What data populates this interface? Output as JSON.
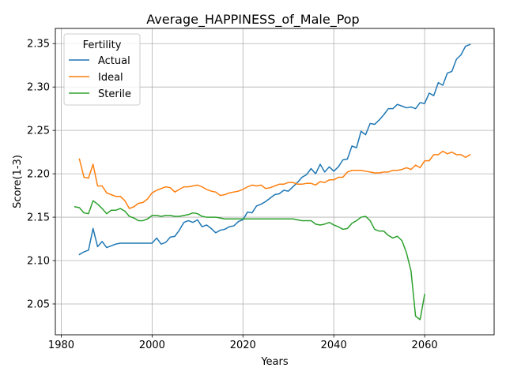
{
  "chart_data": {
    "type": "line",
    "title": "Average_HAPPINESS_of_Male_Pop",
    "xlabel": "Years",
    "ylabel": "Score(1-3)",
    "xlim": [
      1978.7,
      2075.3
    ],
    "ylim": [
      2.0145,
      2.3675
    ],
    "xticks": [
      1980,
      2000,
      2020,
      2040,
      2060
    ],
    "yticks": [
      2.05,
      2.1,
      2.15,
      2.2,
      2.25,
      2.3,
      2.35
    ],
    "ytick_labels": [
      "2.05",
      "2.10",
      "2.15",
      "2.20",
      "2.25",
      "2.30",
      "2.35"
    ],
    "grid": true,
    "legend": {
      "title": "Fertility",
      "placement": "top-left"
    },
    "series": [
      {
        "name": "Actual",
        "color": "#1f77b4",
        "x": [
          1984,
          1985,
          1986,
          1987,
          1988,
          1989,
          1990,
          1991,
          1992,
          1993,
          1994,
          1995,
          1996,
          1997,
          1998,
          1999,
          2000,
          2001,
          2002,
          2003,
          2004,
          2005,
          2006,
          2007,
          2008,
          2009,
          2010,
          2011,
          2012,
          2013,
          2014,
          2015,
          2016,
          2017,
          2018,
          2019,
          2020,
          2021,
          2022,
          2023,
          2024,
          2025,
          2026,
          2027,
          2028,
          2029,
          2030,
          2031,
          2032,
          2033,
          2034,
          2035,
          2036,
          2037,
          2038,
          2039,
          2040,
          2041,
          2042,
          2043,
          2044,
          2045,
          2046,
          2047,
          2048,
          2049,
          2050,
          2051,
          2052,
          2053,
          2054,
          2055,
          2056,
          2057,
          2058,
          2059,
          2060,
          2061,
          2062,
          2063,
          2064,
          2065,
          2066,
          2067,
          2068,
          2069,
          2070
        ],
        "values": [
          2.107,
          2.11,
          2.112,
          2.137,
          2.116,
          2.122,
          2.115,
          2.117,
          2.119,
          2.12,
          2.12,
          2.12,
          2.12,
          2.12,
          2.12,
          2.12,
          2.12,
          2.126,
          2.119,
          2.121,
          2.127,
          2.128,
          2.135,
          2.144,
          2.146,
          2.144,
          2.147,
          2.139,
          2.141,
          2.137,
          2.132,
          2.135,
          2.136,
          2.139,
          2.14,
          2.145,
          2.147,
          2.156,
          2.155,
          2.163,
          2.165,
          2.168,
          2.172,
          2.176,
          2.177,
          2.181,
          2.18,
          2.185,
          2.19,
          2.196,
          2.199,
          2.206,
          2.2,
          2.211,
          2.202,
          2.208,
          2.203,
          2.208,
          2.216,
          2.217,
          2.232,
          2.23,
          2.249,
          2.245,
          2.258,
          2.257,
          2.262,
          2.268,
          2.275,
          2.275,
          2.28,
          2.278,
          2.276,
          2.277,
          2.275,
          2.282,
          2.281,
          2.293,
          2.29,
          2.305,
          2.302,
          2.316,
          2.318,
          2.332,
          2.337,
          2.347,
          2.349
        ]
      },
      {
        "name": "Ideal",
        "color": "#ff7f0e",
        "x": [
          1984,
          1985,
          1986,
          1987,
          1988,
          1989,
          1990,
          1991,
          1992,
          1993,
          1994,
          1995,
          1996,
          1997,
          1998,
          1999,
          2000,
          2001,
          2002,
          2003,
          2004,
          2005,
          2006,
          2007,
          2008,
          2009,
          2010,
          2011,
          2012,
          2013,
          2014,
          2015,
          2016,
          2017,
          2018,
          2019,
          2020,
          2021,
          2022,
          2023,
          2024,
          2025,
          2026,
          2027,
          2028,
          2029,
          2030,
          2031,
          2032,
          2033,
          2034,
          2035,
          2036,
          2037,
          2038,
          2039,
          2040,
          2041,
          2042,
          2043,
          2044,
          2045,
          2046,
          2047,
          2048,
          2049,
          2050,
          2051,
          2052,
          2053,
          2054,
          2055,
          2056,
          2057,
          2058,
          2059,
          2060,
          2061,
          2062,
          2063,
          2064,
          2065,
          2066,
          2067,
          2068,
          2069,
          2070
        ],
        "values": [
          2.217,
          2.196,
          2.195,
          2.211,
          2.186,
          2.186,
          2.178,
          2.176,
          2.174,
          2.174,
          2.169,
          2.16,
          2.162,
          2.166,
          2.167,
          2.171,
          2.178,
          2.181,
          2.183,
          2.185,
          2.184,
          2.179,
          2.182,
          2.185,
          2.185,
          2.186,
          2.187,
          2.185,
          2.182,
          2.18,
          2.179,
          2.175,
          2.176,
          2.178,
          2.179,
          2.18,
          2.182,
          2.185,
          2.187,
          2.186,
          2.187,
          2.183,
          2.184,
          2.186,
          2.188,
          2.188,
          2.19,
          2.19,
          2.188,
          2.188,
          2.189,
          2.189,
          2.187,
          2.191,
          2.19,
          2.193,
          2.193,
          2.196,
          2.196,
          2.202,
          2.204,
          2.204,
          2.204,
          2.203,
          2.202,
          2.201,
          2.201,
          2.202,
          2.202,
          2.204,
          2.204,
          2.205,
          2.207,
          2.205,
          2.21,
          2.207,
          2.215,
          2.215,
          2.222,
          2.222,
          2.226,
          2.223,
          2.225,
          2.222,
          2.222,
          2.219,
          2.222
        ]
      },
      {
        "name": "Sterile",
        "color": "#2ca02c",
        "x": [
          1983,
          1984,
          1985,
          1986,
          1987,
          1988,
          1989,
          1990,
          1991,
          1992,
          1993,
          1994,
          1995,
          1996,
          1997,
          1998,
          1999,
          2000,
          2001,
          2002,
          2003,
          2004,
          2005,
          2006,
          2007,
          2008,
          2009,
          2010,
          2011,
          2012,
          2013,
          2014,
          2015,
          2016,
          2017,
          2018,
          2019,
          2020,
          2021,
          2022,
          2023,
          2024,
          2025,
          2026,
          2027,
          2028,
          2029,
          2030,
          2031,
          2032,
          2033,
          2034,
          2035,
          2036,
          2037,
          2038,
          2039,
          2040,
          2041,
          2042,
          2043,
          2044,
          2045,
          2046,
          2047,
          2048,
          2049,
          2050,
          2051,
          2052,
          2053,
          2054,
          2055,
          2056,
          2057,
          2058,
          2059,
          2060
        ],
        "values": [
          2.162,
          2.161,
          2.155,
          2.154,
          2.169,
          2.165,
          2.16,
          2.154,
          2.158,
          2.158,
          2.16,
          2.157,
          2.151,
          2.149,
          2.146,
          2.146,
          2.148,
          2.152,
          2.152,
          2.151,
          2.152,
          2.152,
          2.151,
          2.151,
          2.152,
          2.153,
          2.155,
          2.154,
          2.151,
          2.15,
          2.15,
          2.15,
          2.149,
          2.148,
          2.148,
          2.148,
          2.148,
          2.148,
          2.148,
          2.148,
          2.148,
          2.148,
          2.148,
          2.148,
          2.148,
          2.148,
          2.148,
          2.148,
          2.148,
          2.147,
          2.146,
          2.146,
          2.146,
          2.142,
          2.141,
          2.142,
          2.144,
          2.141,
          2.139,
          2.136,
          2.137,
          2.143,
          2.146,
          2.15,
          2.151,
          2.146,
          2.136,
          2.134,
          2.134,
          2.129,
          2.126,
          2.128,
          2.123,
          2.109,
          2.088,
          2.036,
          2.032,
          2.061
        ]
      }
    ]
  }
}
